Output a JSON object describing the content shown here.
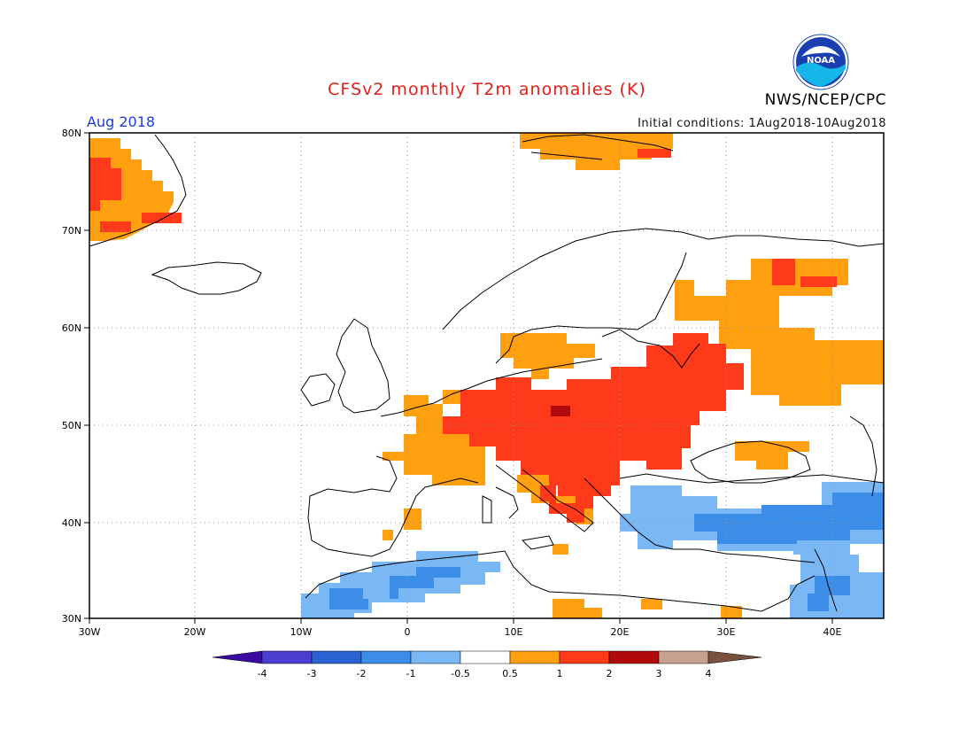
{
  "title": "CFSv2 monthly T2m anomalies (K)",
  "month_label": "Aug 2018",
  "agency_label": "NWS/NCEP/CPC",
  "logo_text": "NOAA",
  "initial_conditions": "Initial conditions: 1Aug2018-10Aug2018",
  "map": {
    "lon_range": [
      -30,
      45
    ],
    "lat_range": [
      30,
      80
    ],
    "lat_ticks": [
      "80N",
      "70N",
      "60N",
      "50N",
      "40N",
      "30N"
    ],
    "lon_ticks": [
      "30W",
      "20W",
      "10W",
      "0",
      "10E",
      "20E",
      "30E",
      "40E"
    ],
    "grid": "dotted"
  },
  "colorbar": {
    "labels": [
      "-4",
      "-3",
      "-2",
      "-1",
      "-0.5",
      "0.5",
      "1",
      "2",
      "3",
      "4"
    ],
    "colors": [
      "#3a0ba0",
      "#4a3fd0",
      "#2a62d4",
      "#3c8de8",
      "#7ab8f5",
      "#ffffff",
      "#ffa010",
      "#ff3a1a",
      "#b00a0a",
      "#c8a090",
      "#7a5040"
    ]
  },
  "anomaly_regions": [
    {
      "level": "0.5 to 1",
      "color": "#ffa010",
      "area": "Greenland east coast"
    },
    {
      "level": "1 to 2",
      "color": "#ff3a1a",
      "area": "Greenland east coast"
    },
    {
      "level": "0.5 to 1",
      "color": "#ffa010",
      "area": "Svalbard"
    },
    {
      "level": "0.5 to 1",
      "color": "#ffa010",
      "area": "Northwest Russia"
    },
    {
      "level": "1 to 2",
      "color": "#ff3a1a",
      "area": "Central and Eastern Europe"
    },
    {
      "level": "2 to 3",
      "color": "#b00a0a",
      "area": "Czech Republic"
    },
    {
      "level": "0.5 to 1",
      "color": "#ffa010",
      "area": "France and Benelux"
    },
    {
      "level": "-1 to -0.5",
      "color": "#7ab8f5",
      "area": "North Africa"
    },
    {
      "level": "-2 to -1",
      "color": "#3c8de8",
      "area": "North Africa"
    },
    {
      "level": "-1 to -0.5",
      "color": "#7ab8f5",
      "area": "Turkey and Black Sea"
    },
    {
      "level": "-2 to -1",
      "color": "#3c8de8",
      "area": "Turkey and Black Sea"
    },
    {
      "level": "-1 to -0.5",
      "color": "#7ab8f5",
      "area": "Eastern Mediterranean"
    }
  ]
}
